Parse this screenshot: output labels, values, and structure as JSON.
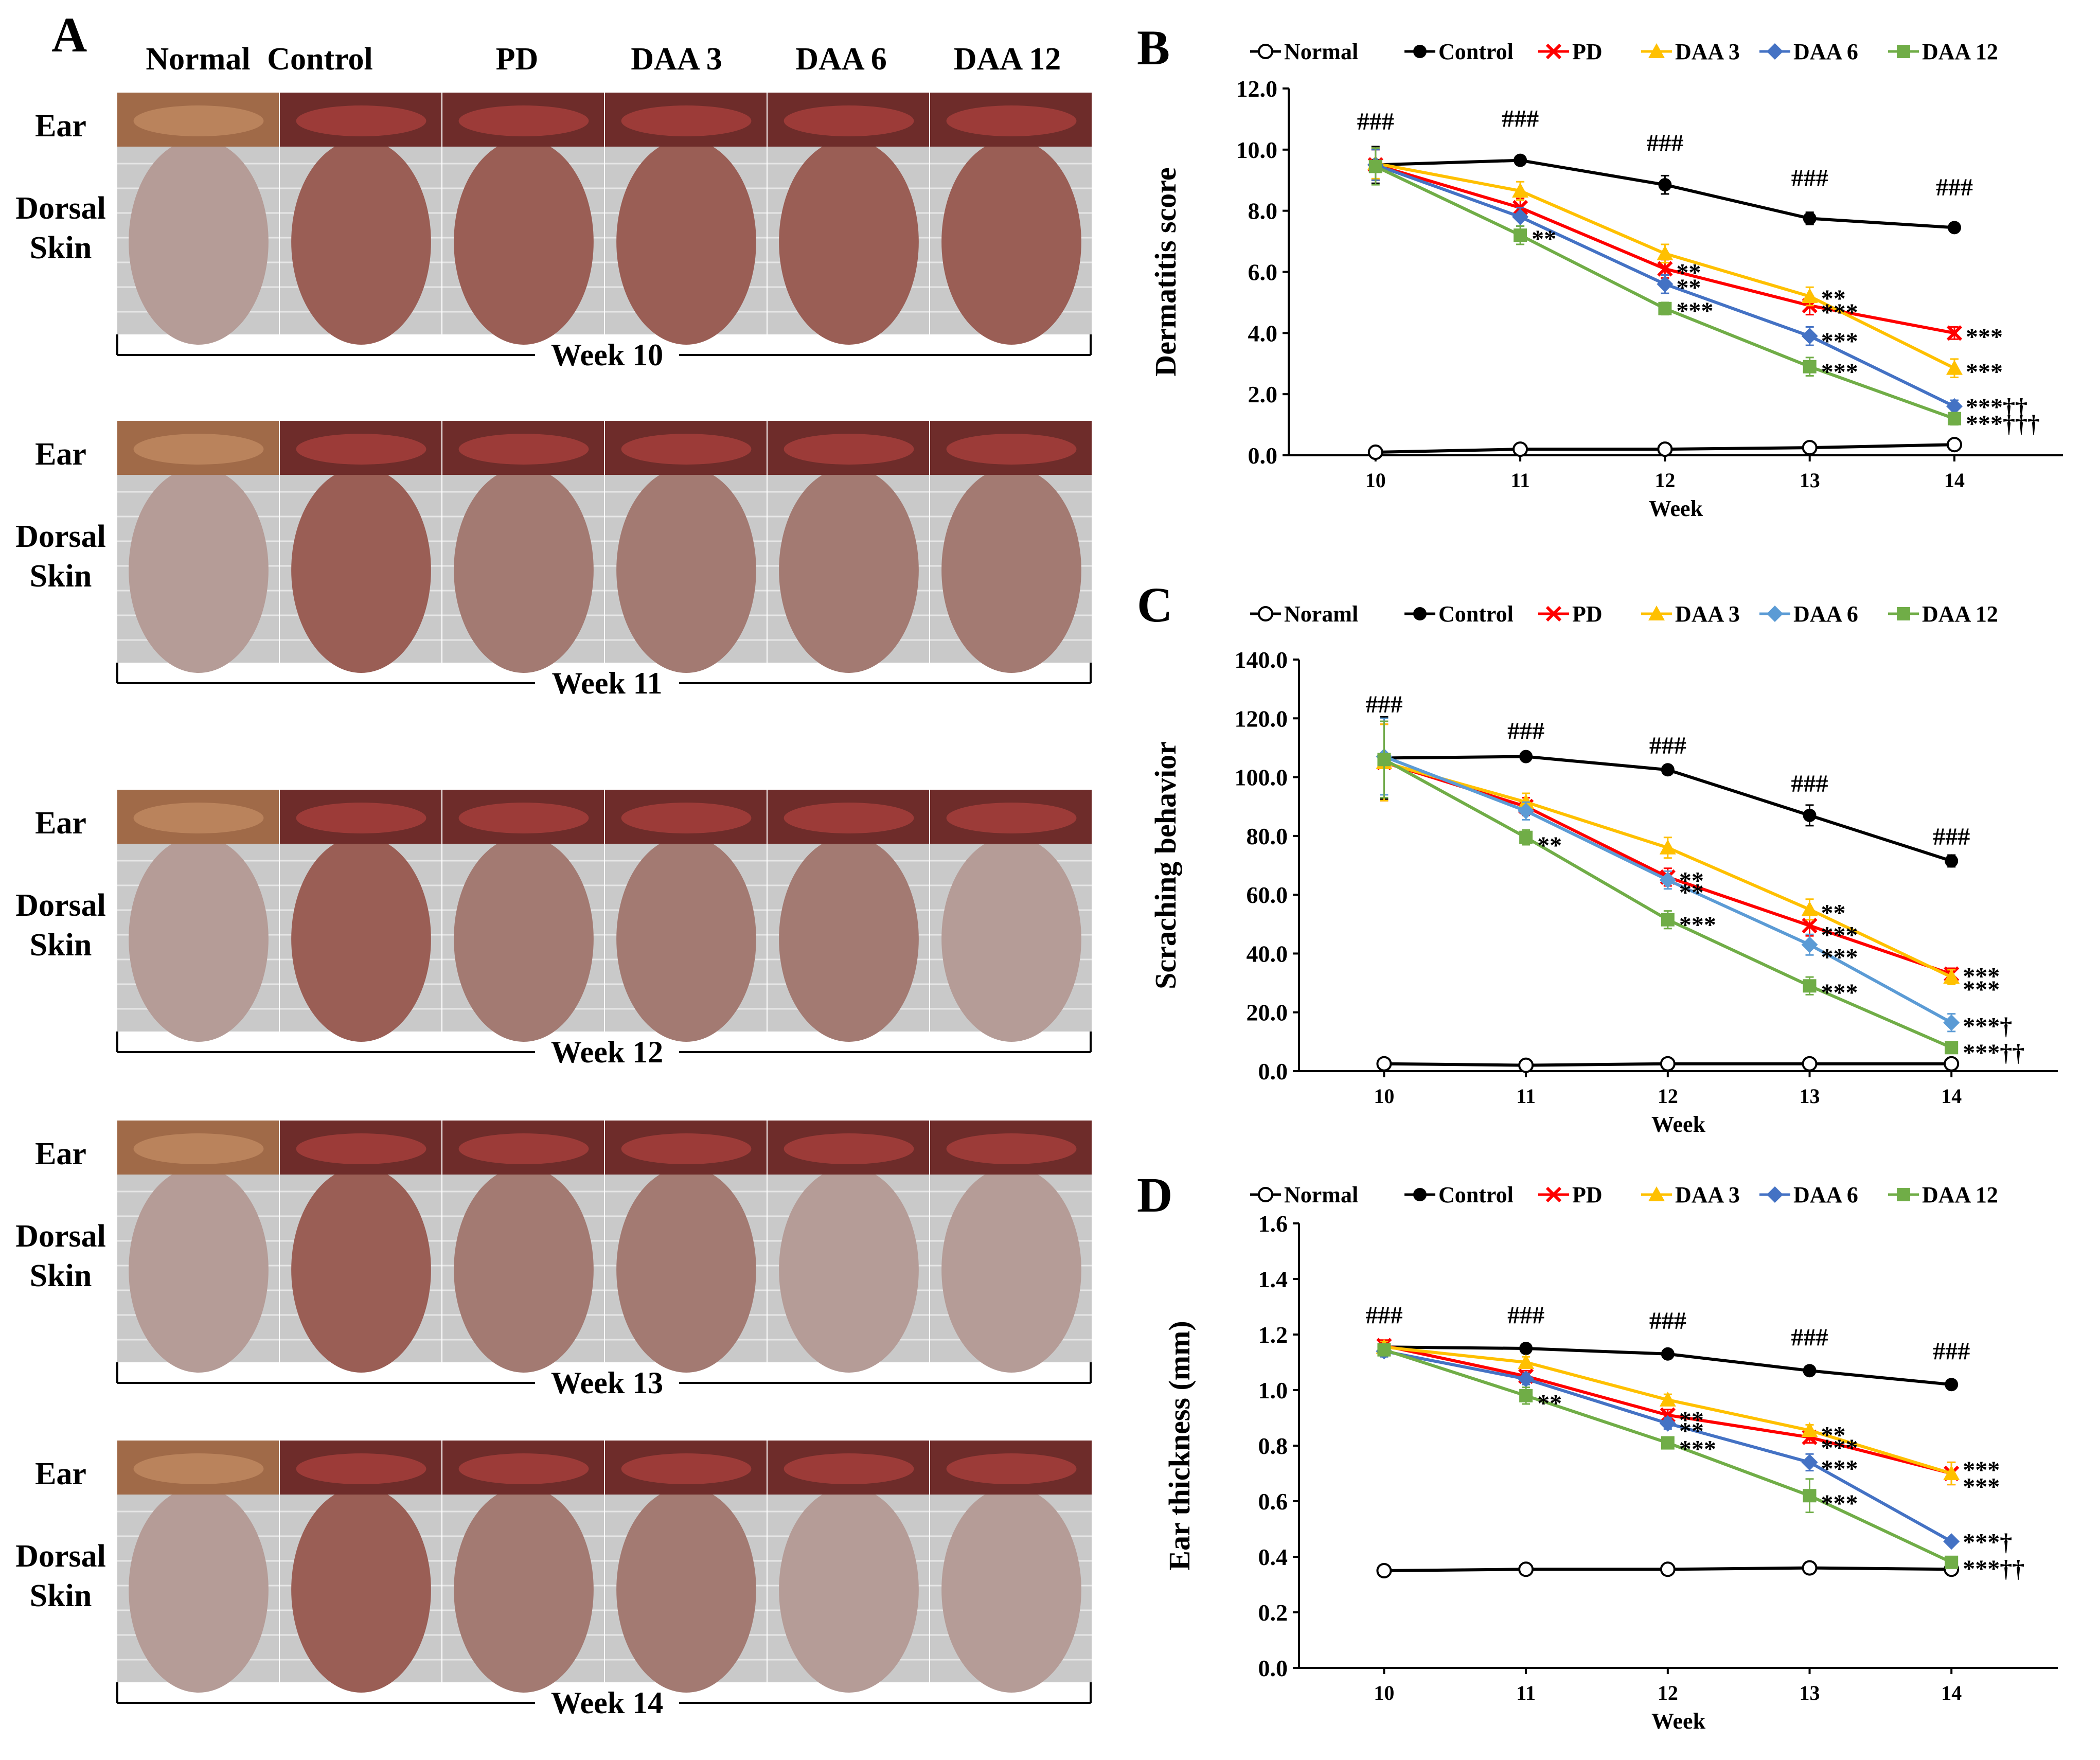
{
  "panel_a": {
    "letter": "A",
    "columns": [
      "Normal",
      "Control",
      "PD",
      "DAA 3",
      "DAA 6",
      "DAA 12"
    ],
    "row_labels": {
      "ear": "Ear",
      "dorsal_1": "Dorsal",
      "dorsal_2": "Skin"
    },
    "weeks": [
      "Week 10",
      "Week 11",
      "Week 12",
      "Week 13",
      "Week 14"
    ],
    "photo_colors": {
      "normal_skin": "#b59c97",
      "lesion_skin": "#9a5e55",
      "healing_skin": "#a37a72",
      "ear_normal": "#a06a48",
      "ear_lesion": "#6e2c2a",
      "cage_bg": "#c9c9c9"
    }
  },
  "chart_data": [
    {
      "panel": "B",
      "type": "line",
      "title": "",
      "xlabel": "Week",
      "ylabel": "Dermatitis score",
      "x": [
        10,
        11,
        12,
        13,
        14
      ],
      "ylim": [
        0,
        12
      ],
      "yticks": [
        "0.0",
        "2.0",
        "4.0",
        "6.0",
        "8.0",
        "10.0",
        "12.0"
      ],
      "legend_position": "top",
      "series": [
        {
          "name": "Normal",
          "color": "#000000",
          "marker": "circle-open",
          "values": [
            0.1,
            0.2,
            0.2,
            0.25,
            0.35
          ],
          "errors": [
            0.05,
            0.05,
            0.05,
            0.05,
            0.05
          ]
        },
        {
          "name": "Control",
          "color": "#000000",
          "marker": "circle",
          "values": [
            9.5,
            9.65,
            8.85,
            7.75,
            7.45
          ],
          "errors": [
            0.6,
            0.1,
            0.3,
            0.2,
            0.15
          ]
        },
        {
          "name": "PD",
          "color": "#ff0000",
          "marker": "x",
          "values": [
            9.5,
            8.1,
            6.1,
            4.9,
            4.0
          ],
          "errors": [
            0.5,
            0.3,
            0.3,
            0.3,
            0.2
          ]
        },
        {
          "name": "DAA 3",
          "color": "#ffc000",
          "marker": "triangle",
          "values": [
            9.55,
            8.65,
            6.6,
            5.2,
            2.85
          ],
          "errors": [
            0.5,
            0.3,
            0.3,
            0.3,
            0.3
          ]
        },
        {
          "name": "DAA 6",
          "color": "#4472c4",
          "marker": "diamond",
          "values": [
            9.5,
            7.8,
            5.6,
            3.9,
            1.6
          ],
          "errors": [
            0.5,
            0.3,
            0.3,
            0.3,
            0.2
          ]
        },
        {
          "name": "DAA 12",
          "color": "#70ad47",
          "marker": "square",
          "values": [
            9.45,
            7.2,
            4.8,
            2.9,
            1.2
          ],
          "errors": [
            0.6,
            0.3,
            0.2,
            0.3,
            0.2
          ]
        }
      ],
      "annotations": [
        {
          "text": "###",
          "x": 10,
          "y": 10.65
        },
        {
          "text": "###",
          "x": 11,
          "y": 10.75
        },
        {
          "text": "###",
          "x": 12,
          "y": 9.95
        },
        {
          "text": "###",
          "x": 13,
          "y": 8.8
        },
        {
          "text": "###",
          "x": 14,
          "y": 8.5
        },
        {
          "text": "**",
          "x": 11,
          "y": 7.15,
          "side": "right"
        },
        {
          "text": "**",
          "x": 12,
          "y": 6.05,
          "side": "right"
        },
        {
          "text": "**",
          "x": 12,
          "y": 5.55,
          "side": "right"
        },
        {
          "text": "***",
          "x": 12,
          "y": 4.8,
          "side": "right"
        },
        {
          "text": "**",
          "x": 13,
          "y": 5.2,
          "side": "right"
        },
        {
          "text": "***",
          "x": 13,
          "y": 4.75,
          "side": "right"
        },
        {
          "text": "***",
          "x": 13,
          "y": 3.8,
          "side": "right"
        },
        {
          "text": "***",
          "x": 13,
          "y": 2.8,
          "side": "right"
        },
        {
          "text": "***",
          "x": 14,
          "y": 3.95,
          "side": "right"
        },
        {
          "text": "***",
          "x": 14,
          "y": 2.8,
          "side": "right"
        },
        {
          "text": "***††",
          "x": 14,
          "y": 1.65,
          "side": "right"
        },
        {
          "text": "***†††",
          "x": 14,
          "y": 1.1,
          "side": "right"
        }
      ]
    },
    {
      "panel": "C",
      "type": "line",
      "title": "",
      "xlabel": "Week",
      "ylabel": "Scraching behavior",
      "x": [
        10,
        11,
        12,
        13,
        14
      ],
      "ylim": [
        0,
        140
      ],
      "yticks": [
        "0.0",
        "20.0",
        "40.0",
        "60.0",
        "80.0",
        "100.0",
        "120.0",
        "140.0"
      ],
      "legend_position": "top",
      "series": [
        {
          "name": "Noraml",
          "color": "#000000",
          "marker": "circle-open",
          "values": [
            2.5,
            2.0,
            2.5,
            2.5,
            2.5
          ],
          "errors": [
            1.5,
            0.5,
            0.5,
            0.5,
            0.5
          ]
        },
        {
          "name": "Control",
          "color": "#000000",
          "marker": "circle",
          "values": [
            106.5,
            107.0,
            102.5,
            87.0,
            71.5
          ],
          "errors": [
            14.0,
            1.0,
            1.5,
            3.5,
            2.0
          ]
        },
        {
          "name": "PD",
          "color": "#ff0000",
          "marker": "x",
          "values": [
            105.0,
            90.0,
            66.0,
            49.5,
            33.0
          ],
          "errors": [
            13.0,
            3.0,
            3.0,
            3.5,
            2.0
          ]
        },
        {
          "name": "DAA 3",
          "color": "#ffc000",
          "marker": "triangle",
          "values": [
            105.0,
            91.5,
            76.0,
            55.0,
            32.0
          ],
          "errors": [
            13.0,
            3.0,
            3.5,
            3.5,
            2.5
          ]
        },
        {
          "name": "DAA 6",
          "color": "#5b9bd5",
          "marker": "diamond",
          "values": [
            107.0,
            88.5,
            65.0,
            43.0,
            16.5
          ],
          "errors": [
            13.0,
            3.0,
            3.0,
            3.5,
            3.0
          ]
        },
        {
          "name": "DAA 12",
          "color": "#70ad47",
          "marker": "square",
          "values": [
            106.0,
            79.5,
            51.5,
            29.0,
            8.0
          ],
          "errors": [
            13.0,
            2.5,
            3.0,
            3.0,
            1.5
          ]
        }
      ],
      "annotations": [
        {
          "text": "###",
          "x": 10,
          "y": 122
        },
        {
          "text": "###",
          "x": 11,
          "y": 113
        },
        {
          "text": "###",
          "x": 12,
          "y": 108
        },
        {
          "text": "###",
          "x": 13,
          "y": 95
        },
        {
          "text": "###",
          "x": 14,
          "y": 77
        },
        {
          "text": "**",
          "x": 11,
          "y": 77.5,
          "side": "right"
        },
        {
          "text": "**",
          "x": 12,
          "y": 65.5,
          "side": "right"
        },
        {
          "text": "**",
          "x": 12,
          "y": 61.5,
          "side": "right"
        },
        {
          "text": "***",
          "x": 12,
          "y": 50.5,
          "side": "right"
        },
        {
          "text": "**",
          "x": 13,
          "y": 54.5,
          "side": "right"
        },
        {
          "text": "***",
          "x": 13,
          "y": 47.0,
          "side": "right"
        },
        {
          "text": "***",
          "x": 13,
          "y": 39.5,
          "side": "right"
        },
        {
          "text": "***",
          "x": 13,
          "y": 27.5,
          "side": "right"
        },
        {
          "text": "***",
          "x": 14,
          "y": 33.0,
          "side": "right"
        },
        {
          "text": "***",
          "x": 14,
          "y": 28.5,
          "side": "right"
        },
        {
          "text": "***†",
          "x": 14,
          "y": 16.0,
          "side": "right"
        },
        {
          "text": "***††",
          "x": 14,
          "y": 7.0,
          "side": "right"
        }
      ]
    },
    {
      "panel": "D",
      "type": "line",
      "title": "",
      "xlabel": "Week",
      "ylabel": "Ear thickness (mm)",
      "x": [
        10,
        11,
        12,
        13,
        14
      ],
      "ylim": [
        0,
        1.6
      ],
      "yticks": [
        "0.0",
        "0.2",
        "0.4",
        "0.6",
        "0.8",
        "1.0",
        "1.2",
        "1.4",
        "1.6"
      ],
      "legend_position": "top",
      "series": [
        {
          "name": "Normal",
          "color": "#000000",
          "marker": "circle-open",
          "values": [
            0.35,
            0.355,
            0.355,
            0.36,
            0.355
          ],
          "errors": [
            0.005,
            0.005,
            0.005,
            0.005,
            0.005
          ]
        },
        {
          "name": "Control",
          "color": "#000000",
          "marker": "circle",
          "values": [
            1.155,
            1.15,
            1.13,
            1.07,
            1.02
          ],
          "errors": [
            0.02,
            0.01,
            0.01,
            0.01,
            0.01
          ]
        },
        {
          "name": "PD",
          "color": "#ff0000",
          "marker": "x",
          "values": [
            1.16,
            1.05,
            0.91,
            0.83,
            0.7
          ],
          "errors": [
            0.02,
            0.02,
            0.02,
            0.02,
            0.04
          ]
        },
        {
          "name": "DAA 3",
          "color": "#ffc000",
          "marker": "triangle",
          "values": [
            1.155,
            1.1,
            0.965,
            0.855,
            0.7
          ],
          "errors": [
            0.02,
            0.02,
            0.02,
            0.02,
            0.04
          ]
        },
        {
          "name": "DAA 6",
          "color": "#4472c4",
          "marker": "diamond",
          "values": [
            1.14,
            1.04,
            0.88,
            0.74,
            0.455
          ],
          "errors": [
            0.02,
            0.02,
            0.02,
            0.03,
            0.01
          ]
        },
        {
          "name": "DAA 12",
          "color": "#70ad47",
          "marker": "square",
          "values": [
            1.145,
            0.98,
            0.81,
            0.62,
            0.38
          ],
          "errors": [
            0.02,
            0.03,
            0.02,
            0.06,
            0.01
          ]
        }
      ],
      "annotations": [
        {
          "text": "###",
          "x": 10,
          "y": 1.24
        },
        {
          "text": "###",
          "x": 11,
          "y": 1.24
        },
        {
          "text": "###",
          "x": 12,
          "y": 1.22
        },
        {
          "text": "###",
          "x": 13,
          "y": 1.16
        },
        {
          "text": "###",
          "x": 14,
          "y": 1.11
        },
        {
          "text": "**",
          "x": 11,
          "y": 0.96,
          "side": "right"
        },
        {
          "text": "**",
          "x": 12,
          "y": 0.9,
          "side": "right"
        },
        {
          "text": "**",
          "x": 12,
          "y": 0.86,
          "side": "right"
        },
        {
          "text": "***",
          "x": 12,
          "y": 0.795,
          "side": "right"
        },
        {
          "text": "**",
          "x": 13,
          "y": 0.845,
          "side": "right"
        },
        {
          "text": "***",
          "x": 13,
          "y": 0.8,
          "side": "right"
        },
        {
          "text": "***",
          "x": 13,
          "y": 0.725,
          "side": "right"
        },
        {
          "text": "***",
          "x": 13,
          "y": 0.6,
          "side": "right"
        },
        {
          "text": "***",
          "x": 14,
          "y": 0.72,
          "side": "right"
        },
        {
          "text": "***",
          "x": 14,
          "y": 0.66,
          "side": "right"
        },
        {
          "text": "***†",
          "x": 14,
          "y": 0.46,
          "side": "right"
        },
        {
          "text": "***††",
          "x": 14,
          "y": 0.365,
          "side": "right"
        }
      ]
    }
  ]
}
